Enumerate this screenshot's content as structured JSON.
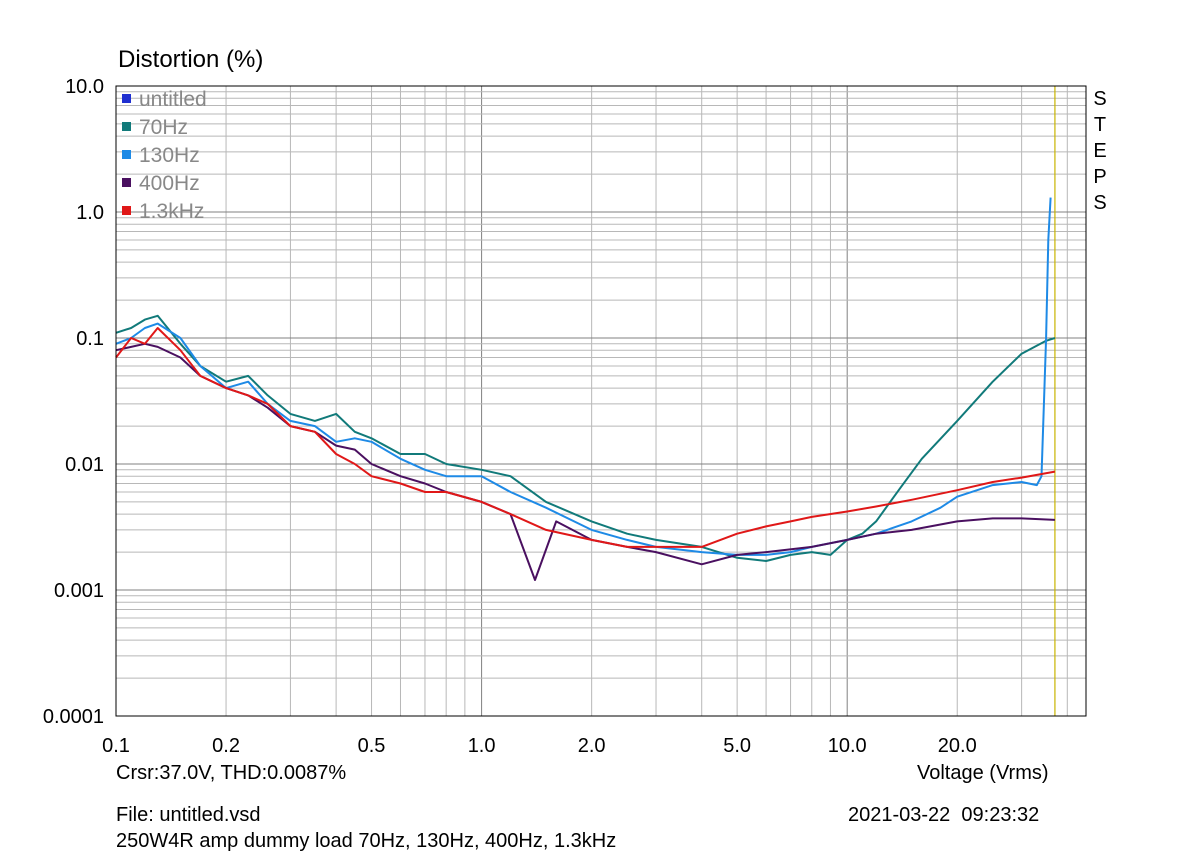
{
  "chart_data": {
    "type": "line",
    "title": "Distortion (%)",
    "xlabel": "Voltage (Vrms)",
    "x_scale": "log",
    "y_scale": "log",
    "xlim": [
      0.1,
      45
    ],
    "ylim": [
      0.0001,
      10
    ],
    "grid": true,
    "legend_position": "top-left",
    "x_ticks": [
      {
        "value": 0.1,
        "label": "0.1"
      },
      {
        "value": 0.2,
        "label": "0.2"
      },
      {
        "value": 0.5,
        "label": "0.5"
      },
      {
        "value": 1,
        "label": "1.0"
      },
      {
        "value": 2,
        "label": "2.0"
      },
      {
        "value": 5,
        "label": "5.0"
      },
      {
        "value": 10,
        "label": "10.0"
      },
      {
        "value": 20,
        "label": "20.0"
      }
    ],
    "y_ticks": [
      {
        "value": 10,
        "label": "10.0"
      },
      {
        "value": 1,
        "label": "1.0"
      },
      {
        "value": 0.1,
        "label": "0.1"
      },
      {
        "value": 0.01,
        "label": "0.01"
      },
      {
        "value": 0.001,
        "label": "0.001"
      },
      {
        "value": 0.0001,
        "label": "0.0001"
      }
    ],
    "cursor": {
      "x": 37.0,
      "color": "#c8b400"
    },
    "series": [
      {
        "name": "untitled",
        "color": "#1f2fd0",
        "points": []
      },
      {
        "name": "70Hz",
        "color": "#117a7a",
        "points": [
          [
            0.1,
            0.11
          ],
          [
            0.11,
            0.12
          ],
          [
            0.12,
            0.14
          ],
          [
            0.13,
            0.15
          ],
          [
            0.15,
            0.09
          ],
          [
            0.17,
            0.06
          ],
          [
            0.2,
            0.045
          ],
          [
            0.23,
            0.05
          ],
          [
            0.26,
            0.035
          ],
          [
            0.3,
            0.025
          ],
          [
            0.35,
            0.022
          ],
          [
            0.4,
            0.025
          ],
          [
            0.45,
            0.018
          ],
          [
            0.5,
            0.016
          ],
          [
            0.6,
            0.012
          ],
          [
            0.7,
            0.012
          ],
          [
            0.8,
            0.01
          ],
          [
            1.0,
            0.009
          ],
          [
            1.2,
            0.008
          ],
          [
            1.5,
            0.005
          ],
          [
            2.0,
            0.0035
          ],
          [
            2.5,
            0.0028
          ],
          [
            3.0,
            0.0025
          ],
          [
            4.0,
            0.0022
          ],
          [
            5.0,
            0.0018
          ],
          [
            6.0,
            0.0017
          ],
          [
            7.0,
            0.0019
          ],
          [
            8.0,
            0.002
          ],
          [
            9.0,
            0.0019
          ],
          [
            10.0,
            0.0025
          ],
          [
            11.0,
            0.0028
          ],
          [
            12.0,
            0.0035
          ],
          [
            14.0,
            0.0065
          ],
          [
            16.0,
            0.011
          ],
          [
            20.0,
            0.022
          ],
          [
            25.0,
            0.045
          ],
          [
            30.0,
            0.075
          ],
          [
            35.0,
            0.095
          ],
          [
            37.0,
            0.1
          ]
        ]
      },
      {
        "name": "130Hz",
        "color": "#1e8ae6",
        "points": [
          [
            0.1,
            0.09
          ],
          [
            0.11,
            0.1
          ],
          [
            0.12,
            0.12
          ],
          [
            0.13,
            0.13
          ],
          [
            0.15,
            0.1
          ],
          [
            0.17,
            0.06
          ],
          [
            0.2,
            0.04
          ],
          [
            0.23,
            0.045
          ],
          [
            0.26,
            0.03
          ],
          [
            0.3,
            0.022
          ],
          [
            0.35,
            0.02
          ],
          [
            0.4,
            0.015
          ],
          [
            0.45,
            0.016
          ],
          [
            0.5,
            0.015
          ],
          [
            0.6,
            0.011
          ],
          [
            0.7,
            0.009
          ],
          [
            0.8,
            0.008
          ],
          [
            1.0,
            0.008
          ],
          [
            1.2,
            0.006
          ],
          [
            1.5,
            0.0045
          ],
          [
            2.0,
            0.003
          ],
          [
            2.5,
            0.0025
          ],
          [
            3.0,
            0.0022
          ],
          [
            4.0,
            0.002
          ],
          [
            5.0,
            0.0019
          ],
          [
            6.0,
            0.0019
          ],
          [
            7.0,
            0.002
          ],
          [
            8.0,
            0.0022
          ],
          [
            10.0,
            0.0025
          ],
          [
            12.0,
            0.0028
          ],
          [
            15.0,
            0.0035
          ],
          [
            18.0,
            0.0045
          ],
          [
            20.0,
            0.0055
          ],
          [
            25.0,
            0.0068
          ],
          [
            30.0,
            0.0072
          ],
          [
            33.0,
            0.0068
          ],
          [
            34.0,
            0.008
          ],
          [
            35.0,
            0.1
          ],
          [
            35.5,
            0.6
          ],
          [
            36.0,
            1.3
          ]
        ]
      },
      {
        "name": "400Hz",
        "color": "#4a1060",
        "points": [
          [
            0.1,
            0.08
          ],
          [
            0.11,
            0.085
          ],
          [
            0.12,
            0.09
          ],
          [
            0.13,
            0.085
          ],
          [
            0.15,
            0.07
          ],
          [
            0.17,
            0.05
          ],
          [
            0.2,
            0.04
          ],
          [
            0.23,
            0.035
          ],
          [
            0.26,
            0.028
          ],
          [
            0.3,
            0.02
          ],
          [
            0.35,
            0.018
          ],
          [
            0.4,
            0.014
          ],
          [
            0.45,
            0.013
          ],
          [
            0.5,
            0.01
          ],
          [
            0.6,
            0.008
          ],
          [
            0.7,
            0.007
          ],
          [
            0.8,
            0.006
          ],
          [
            1.0,
            0.005
          ],
          [
            1.2,
            0.004
          ],
          [
            1.4,
            0.0012
          ],
          [
            1.6,
            0.0035
          ],
          [
            2.0,
            0.0025
          ],
          [
            2.5,
            0.0022
          ],
          [
            3.0,
            0.002
          ],
          [
            4.0,
            0.0016
          ],
          [
            5.0,
            0.0019
          ],
          [
            6.0,
            0.002
          ],
          [
            8.0,
            0.0022
          ],
          [
            10.0,
            0.0025
          ],
          [
            12.0,
            0.0028
          ],
          [
            15.0,
            0.003
          ],
          [
            20.0,
            0.0035
          ],
          [
            25.0,
            0.0037
          ],
          [
            30.0,
            0.0037
          ],
          [
            37.0,
            0.0036
          ]
        ]
      },
      {
        "name": "1.3kHz",
        "color": "#e01818",
        "points": [
          [
            0.1,
            0.07
          ],
          [
            0.11,
            0.1
          ],
          [
            0.12,
            0.09
          ],
          [
            0.13,
            0.12
          ],
          [
            0.15,
            0.08
          ],
          [
            0.17,
            0.05
          ],
          [
            0.2,
            0.04
          ],
          [
            0.23,
            0.035
          ],
          [
            0.26,
            0.03
          ],
          [
            0.3,
            0.02
          ],
          [
            0.35,
            0.018
          ],
          [
            0.4,
            0.012
          ],
          [
            0.45,
            0.01
          ],
          [
            0.5,
            0.008
          ],
          [
            0.6,
            0.007
          ],
          [
            0.7,
            0.006
          ],
          [
            0.8,
            0.006
          ],
          [
            1.0,
            0.005
          ],
          [
            1.2,
            0.004
          ],
          [
            1.5,
            0.003
          ],
          [
            2.0,
            0.0025
          ],
          [
            2.5,
            0.0022
          ],
          [
            3.0,
            0.0022
          ],
          [
            4.0,
            0.0022
          ],
          [
            5.0,
            0.0028
          ],
          [
            6.0,
            0.0032
          ],
          [
            7.0,
            0.0035
          ],
          [
            8.0,
            0.0038
          ],
          [
            10.0,
            0.0042
          ],
          [
            12.0,
            0.0046
          ],
          [
            15.0,
            0.0052
          ],
          [
            20.0,
            0.0062
          ],
          [
            25.0,
            0.0072
          ],
          [
            30.0,
            0.0078
          ],
          [
            37.0,
            0.0087
          ]
        ]
      }
    ]
  },
  "labels": {
    "title": "Distortion (%)",
    "xlabel": "Voltage (Vrms)",
    "steps": [
      "S",
      "T",
      "E",
      "P",
      "S"
    ],
    "cursor_readout": "Crsr:37.0V, THD:0.0087%",
    "file": "File: untitled.vsd",
    "datetime": "2021-03-22  09:23:32",
    "description": "250W4R amp dummy load 70Hz, 130Hz, 400Hz, 1.3kHz"
  }
}
